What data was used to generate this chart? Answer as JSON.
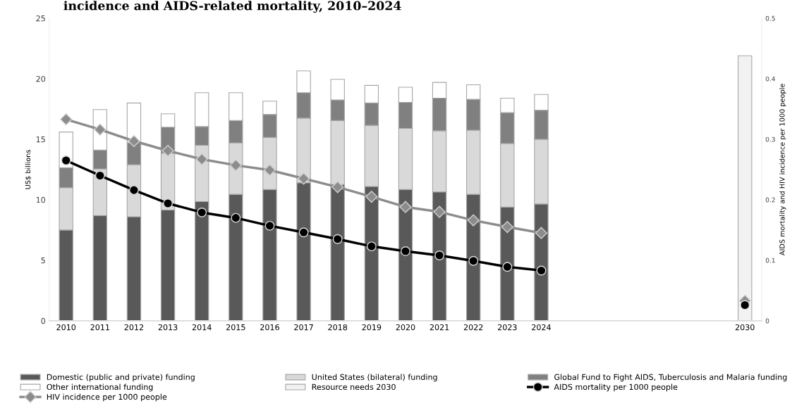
{
  "chart_data": {
    "type": "bar",
    "stacked": true,
    "title": "incidence and AIDS-related mortality, 2010–2024",
    "categories": [
      "2010",
      "2011",
      "2012",
      "2013",
      "2014",
      "2015",
      "2016",
      "2017",
      "2018",
      "2019",
      "2020",
      "2021",
      "2022",
      "2023",
      "2024",
      null,
      null,
      null,
      null,
      null,
      "2030"
    ],
    "ylabel": "US$ billions",
    "y2label": "AIDS mortality and HIV incidence per 1000 people",
    "ylim": [
      0,
      25
    ],
    "yticks": [
      0,
      5,
      10,
      15,
      20,
      25
    ],
    "y2lim": [
      0,
      0.5
    ],
    "y2ticks": [
      0,
      0.1,
      0.2,
      0.3,
      0.4,
      0.5
    ],
    "grid": false,
    "legend": "bottom",
    "series": [
      {
        "name": "Domestic (public and private) funding",
        "color": "#595959",
        "values": [
          7.5,
          8.7,
          8.6,
          9.15,
          9.85,
          10.45,
          10.85,
          11.4,
          11.25,
          11.1,
          10.85,
          10.65,
          10.45,
          9.4,
          9.65,
          null,
          null,
          null,
          null,
          null,
          null
        ]
      },
      {
        "name": "United States (bilateral) funding",
        "color": "#d9d9d9",
        "values": [
          3.5,
          3.85,
          4.3,
          4.7,
          4.65,
          4.25,
          4.3,
          5.35,
          5.3,
          5.05,
          5.05,
          5.05,
          5.3,
          5.25,
          5.35,
          null,
          null,
          null,
          null,
          null,
          null
        ]
      },
      {
        "name": "Global Fund to Fight AIDS, Tuberculosis and Malaria funding",
        "color": "#808080",
        "values": [
          1.65,
          1.55,
          1.8,
          2.15,
          1.55,
          1.85,
          1.9,
          2.1,
          1.7,
          1.85,
          2.15,
          2.7,
          2.55,
          2.55,
          2.4,
          null,
          null,
          null,
          null,
          null,
          null
        ]
      },
      {
        "name": "Other international funding",
        "color": "#ffffff",
        "values": [
          2.95,
          3.35,
          3.3,
          1.1,
          2.8,
          2.3,
          1.1,
          1.8,
          1.7,
          1.45,
          1.25,
          1.3,
          1.2,
          1.2,
          1.3,
          null,
          null,
          null,
          null,
          null,
          null
        ]
      },
      {
        "name": "Resource needs 2030",
        "color": "#f2f2f2",
        "values": [
          null,
          null,
          null,
          null,
          null,
          null,
          null,
          null,
          null,
          null,
          null,
          null,
          null,
          null,
          null,
          null,
          null,
          null,
          null,
          null,
          21.9
        ]
      },
      {
        "name": "AIDS mortality per 1000 people",
        "type": "line",
        "axis": "y2",
        "marker": "circle",
        "color": "#000000",
        "values": [
          0.265,
          0.24,
          0.216,
          0.194,
          0.179,
          0.17,
          0.157,
          0.146,
          0.135,
          0.123,
          0.115,
          0.108,
          0.099,
          0.089,
          0.083,
          null,
          null,
          null,
          null,
          null,
          0.026
        ]
      },
      {
        "name": "HIV incidence per 1000 people",
        "type": "line",
        "axis": "y2",
        "marker": "diamond",
        "color": "#8c8c8c",
        "values": [
          0.333,
          0.316,
          0.297,
          0.281,
          0.267,
          0.257,
          0.249,
          0.235,
          0.221,
          0.205,
          0.188,
          0.18,
          0.166,
          0.155,
          0.145,
          null,
          null,
          null,
          null,
          null,
          0.033
        ]
      }
    ]
  }
}
